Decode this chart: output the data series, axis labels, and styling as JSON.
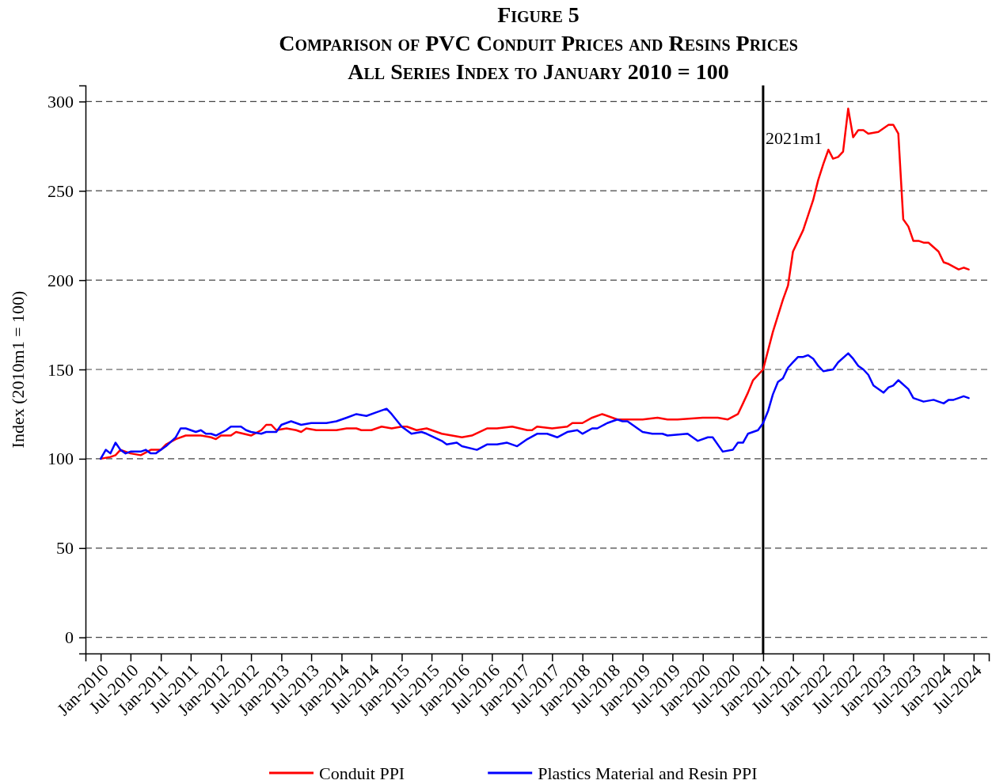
{
  "chart_data": {
    "type": "line",
    "title": "Figure 5",
    "subtitle": "Comparison of PVC Conduit Prices and Resins Prices\nAll Series Index to January 2010 = 100",
    "ylabel": "Index (2010m1 = 100)",
    "xlim": [
      "2009-10",
      "2024-10"
    ],
    "ylim": [
      -9,
      309
    ],
    "yticks": [
      0,
      50,
      100,
      150,
      200,
      250,
      300
    ],
    "xticks": [
      {
        "value": "2010-01",
        "label": "Jan-2010"
      },
      {
        "value": "2010-07",
        "label": "Jul-2010"
      },
      {
        "value": "2011-01",
        "label": "Jan-2011"
      },
      {
        "value": "2011-07",
        "label": "Jul-2011"
      },
      {
        "value": "2012-01",
        "label": "Jan-2012"
      },
      {
        "value": "2012-07",
        "label": "Jul-2012"
      },
      {
        "value": "2013-01",
        "label": "Jan-2013"
      },
      {
        "value": "2013-07",
        "label": "Jul-2013"
      },
      {
        "value": "2014-01",
        "label": "Jan-2014"
      },
      {
        "value": "2014-07",
        "label": "Jul-2014"
      },
      {
        "value": "2015-01",
        "label": "Jan-2015"
      },
      {
        "value": "2015-07",
        "label": "Jul-2015"
      },
      {
        "value": "2016-01",
        "label": "Jan-2016"
      },
      {
        "value": "2016-07",
        "label": "Jul-2016"
      },
      {
        "value": "2017-01",
        "label": "Jan-2017"
      },
      {
        "value": "2017-07",
        "label": "Jul-2017"
      },
      {
        "value": "2018-01",
        "label": "Jan-2018"
      },
      {
        "value": "2018-07",
        "label": "Jul-2018"
      },
      {
        "value": "2019-01",
        "label": "Jan-2019"
      },
      {
        "value": "2019-07",
        "label": "Jul-2019"
      },
      {
        "value": "2020-01",
        "label": "Jan-2020"
      },
      {
        "value": "2020-07",
        "label": "Jul-2020"
      },
      {
        "value": "2021-01",
        "label": "Jan-2021"
      },
      {
        "value": "2021-07",
        "label": "Jul-2021"
      },
      {
        "value": "2022-01",
        "label": "Jan-2022"
      },
      {
        "value": "2022-07",
        "label": "Jul-2022"
      },
      {
        "value": "2023-01",
        "label": "Jan-2023"
      },
      {
        "value": "2023-07",
        "label": "Jul-2023"
      },
      {
        "value": "2024-01",
        "label": "Jan-2024"
      },
      {
        "value": "2024-07",
        "label": "Jul-2024"
      }
    ],
    "grid": "y",
    "legend": "bottom",
    "ref_lines": [
      {
        "axis": "x",
        "value": "2021-01",
        "label": "2021m1",
        "color": "#000000"
      }
    ],
    "series": [
      {
        "name": "Conduit PPI",
        "color": "#ff0000",
        "x": [
          "2010-01",
          "2010-03",
          "2010-04",
          "2010-05",
          "2010-07",
          "2010-09",
          "2010-11",
          "2011-01",
          "2011-02",
          "2011-04",
          "2011-06",
          "2011-09",
          "2011-11",
          "2011-12",
          "2012-01",
          "2012-03",
          "2012-04",
          "2012-07",
          "2012-09",
          "2012-10",
          "2012-11",
          "2012-12",
          "2013-02",
          "2013-04",
          "2013-05",
          "2013-06",
          "2013-08",
          "2013-10",
          "2013-12",
          "2014-02",
          "2014-04",
          "2014-05",
          "2014-07",
          "2014-09",
          "2014-11",
          "2015-01",
          "2015-02",
          "2015-04",
          "2015-06",
          "2015-09",
          "2016-01",
          "2016-03",
          "2016-06",
          "2016-08",
          "2016-11",
          "2017-02",
          "2017-03",
          "2017-04",
          "2017-07",
          "2017-10",
          "2017-11",
          "2018-01",
          "2018-03",
          "2018-05",
          "2018-08",
          "2019-01",
          "2019-04",
          "2019-06",
          "2019-08",
          "2020-01",
          "2020-04",
          "2020-06",
          "2020-08",
          "2020-09",
          "2020-10",
          "2020-11",
          "2021-01",
          "2021-03",
          "2021-05",
          "2021-06",
          "2021-07",
          "2021-09",
          "2021-11",
          "2021-12",
          "2022-01",
          "2022-02",
          "2022-03",
          "2022-04",
          "2022-05",
          "2022-06",
          "2022-07",
          "2022-08",
          "2022-09",
          "2022-10",
          "2022-12",
          "2023-02",
          "2023-03",
          "2023-04",
          "2023-05",
          "2023-06",
          "2023-07",
          "2023-08",
          "2023-09",
          "2023-10",
          "2023-12",
          "2024-01",
          "2024-02",
          "2024-04",
          "2024-05",
          "2024-06"
        ],
        "values": [
          100,
          101,
          102,
          105,
          103,
          102,
          105,
          105,
          108,
          111,
          113,
          113,
          112,
          111,
          113,
          113,
          115,
          113,
          116,
          119,
          119,
          116,
          117,
          116,
          115,
          117,
          116,
          116,
          116,
          117,
          117,
          116,
          116,
          118,
          117,
          118,
          118,
          116,
          117,
          114,
          112,
          113,
          117,
          117,
          118,
          116,
          116,
          118,
          117,
          118,
          120,
          120,
          123,
          125,
          122,
          122,
          123,
          122,
          122,
          123,
          123,
          122,
          125,
          131,
          137,
          144,
          150,
          171,
          189,
          197,
          216,
          228,
          245,
          256,
          265,
          273,
          268,
          269,
          272,
          296,
          280,
          284,
          284,
          282,
          283,
          287,
          287,
          282,
          234,
          230,
          222,
          222,
          221,
          221,
          216,
          210,
          209,
          206,
          207,
          206
        ]
      },
      {
        "name": "Plastics Material and Resin PPI",
        "color": "#0000ff",
        "x": [
          "2010-01",
          "2010-02",
          "2010-03",
          "2010-04",
          "2010-05",
          "2010-06",
          "2010-07",
          "2010-09",
          "2010-10",
          "2010-11",
          "2010-12",
          "2011-02",
          "2011-04",
          "2011-05",
          "2011-06",
          "2011-08",
          "2011-09",
          "2011-10",
          "2011-11",
          "2011-12",
          "2012-02",
          "2012-03",
          "2012-05",
          "2012-06",
          "2012-07",
          "2012-09",
          "2012-10",
          "2012-12",
          "2013-01",
          "2013-03",
          "2013-05",
          "2013-07",
          "2013-10",
          "2013-12",
          "2014-02",
          "2014-04",
          "2014-06",
          "2014-08",
          "2014-10",
          "2014-11",
          "2015-01",
          "2015-03",
          "2015-05",
          "2015-06",
          "2015-09",
          "2015-10",
          "2015-12",
          "2016-01",
          "2016-04",
          "2016-06",
          "2016-08",
          "2016-10",
          "2016-12",
          "2017-02",
          "2017-04",
          "2017-06",
          "2017-08",
          "2017-10",
          "2017-12",
          "2018-01",
          "2018-03",
          "2018-04",
          "2018-06",
          "2018-08",
          "2018-09",
          "2018-10",
          "2019-01",
          "2019-03",
          "2019-05",
          "2019-06",
          "2019-10",
          "2019-12",
          "2020-02",
          "2020-03",
          "2020-05",
          "2020-07",
          "2020-08",
          "2020-09",
          "2020-10",
          "2020-12",
          "2021-01",
          "2021-02",
          "2021-03",
          "2021-04",
          "2021-05",
          "2021-06",
          "2021-07",
          "2021-08",
          "2021-09",
          "2021-10",
          "2021-11",
          "2021-12",
          "2022-01",
          "2022-03",
          "2022-04",
          "2022-06",
          "2022-07",
          "2022-08",
          "2022-09",
          "2022-10",
          "2022-11",
          "2023-01",
          "2023-02",
          "2023-03",
          "2023-04",
          "2023-06",
          "2023-07",
          "2023-09",
          "2023-11",
          "2023-12",
          "2024-01",
          "2024-02",
          "2024-03",
          "2024-04",
          "2024-05",
          "2024-06"
        ],
        "values": [
          100,
          105,
          103,
          109,
          105,
          103,
          104,
          104,
          105,
          103,
          103,
          107,
          112,
          117,
          117,
          115,
          116,
          114,
          114,
          113,
          116,
          118,
          118,
          116,
          115,
          114,
          115,
          115,
          119,
          121,
          119,
          120,
          120,
          121,
          123,
          125,
          124,
          126,
          128,
          125,
          118,
          114,
          115,
          114,
          110,
          108,
          109,
          107,
          105,
          108,
          108,
          109,
          107,
          111,
          114,
          114,
          112,
          115,
          116,
          114,
          117,
          117,
          120,
          122,
          121,
          121,
          115,
          114,
          114,
          113,
          114,
          110,
          112,
          112,
          104,
          105,
          109,
          109,
          114,
          116,
          120,
          127,
          136,
          143,
          145,
          151,
          154,
          157,
          157,
          158,
          156,
          152,
          149,
          150,
          154,
          159,
          156,
          152,
          150,
          147,
          141,
          137,
          140,
          141,
          144,
          139,
          134,
          132,
          133,
          132,
          131,
          133,
          133,
          134,
          135,
          134
        ]
      }
    ]
  }
}
